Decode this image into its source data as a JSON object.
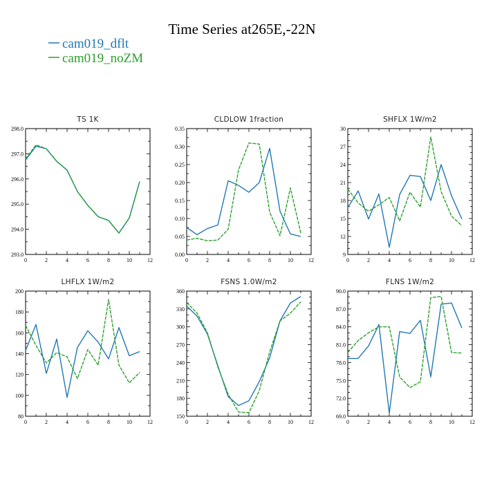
{
  "figure_title": "Time Series at265E,-22N",
  "legend": [
    {
      "label": "cam019_dflt",
      "color": "#1f77b4",
      "dashed": false
    },
    {
      "label": "cam019_noZM",
      "color": "#2ca02c",
      "dashed": true
    }
  ],
  "chart_data": [
    {
      "type": "line",
      "title": "TS   1K",
      "x": [
        0,
        1,
        2,
        3,
        4,
        5,
        6,
        7,
        8,
        9,
        10,
        11
      ],
      "xlim": [
        0,
        12
      ],
      "xticks": [
        "0",
        "2",
        "4",
        "6",
        "8",
        "10",
        "12"
      ],
      "ylim": [
        293,
        298
      ],
      "yticks": [
        "293.0",
        "294.0",
        "295.0",
        "296.0",
        "297.0",
        "298.0"
      ],
      "series": [
        {
          "name": "cam019_dflt",
          "color": "#1f77b4",
          "values": [
            296.75,
            297.3,
            297.2,
            296.7,
            296.35,
            295.5,
            294.95,
            294.5,
            294.35,
            293.85,
            294.45,
            295.9
          ]
        },
        {
          "name": "cam019_noZM",
          "color": "#2ca02c",
          "dashed": true,
          "values": [
            296.8,
            297.35,
            297.2,
            296.7,
            296.35,
            295.5,
            294.95,
            294.5,
            294.35,
            293.85,
            294.45,
            295.9
          ]
        }
      ]
    },
    {
      "type": "line",
      "title": "CLDLOW   1fraction",
      "x": [
        0,
        1,
        2,
        3,
        4,
        5,
        6,
        7,
        8,
        9,
        10,
        11
      ],
      "xlim": [
        0,
        12
      ],
      "xticks": [
        "0",
        "2",
        "4",
        "6",
        "8",
        "10",
        "12"
      ],
      "ylim": [
        0,
        0.35
      ],
      "yticks": [
        "0.00",
        "0.05",
        "0.10",
        "0.15",
        "0.20",
        "0.25",
        "0.30",
        "0.35"
      ],
      "series": [
        {
          "name": "cam019_dflt",
          "color": "#1f77b4",
          "values": [
            0.075,
            0.055,
            0.072,
            0.082,
            0.205,
            0.192,
            0.173,
            0.2,
            0.295,
            0.12,
            0.057,
            0.05
          ]
        },
        {
          "name": "cam019_noZM",
          "color": "#2ca02c",
          "dashed": true,
          "values": [
            0.04,
            0.045,
            0.038,
            0.04,
            0.07,
            0.235,
            0.31,
            0.307,
            0.118,
            0.052,
            0.185,
            0.06
          ]
        }
      ]
    },
    {
      "type": "line",
      "title": "SHFLX   1W/m2",
      "x": [
        0,
        1,
        2,
        3,
        4,
        5,
        6,
        7,
        8,
        9,
        10,
        11
      ],
      "xlim": [
        0,
        12
      ],
      "xticks": [
        "0",
        "2",
        "4",
        "6",
        "8",
        "10",
        "12"
      ],
      "ylim": [
        9,
        30
      ],
      "yticks": [
        "9",
        "12",
        "15",
        "18",
        "21",
        "24",
        "27",
        "30"
      ],
      "series": [
        {
          "name": "cam019_dflt",
          "color": "#1f77b4",
          "values": [
            16.8,
            19.6,
            14.9,
            19.1,
            10.2,
            19.0,
            22.2,
            22.0,
            18.0,
            24.0,
            18.8,
            14.9
          ]
        },
        {
          "name": "cam019_noZM",
          "color": "#2ca02c",
          "dashed": true,
          "values": [
            19.9,
            17.6,
            16.2,
            17.3,
            18.5,
            14.6,
            19.4,
            16.9,
            28.6,
            19.5,
            15.4,
            13.8
          ]
        }
      ]
    },
    {
      "type": "line",
      "title": "LHFLX   1W/m2",
      "x": [
        0,
        1,
        2,
        3,
        4,
        5,
        6,
        7,
        8,
        9,
        10,
        11
      ],
      "xlim": [
        0,
        12
      ],
      "xticks": [
        "0",
        "2",
        "4",
        "6",
        "8",
        "10",
        "12"
      ],
      "ylim": [
        80,
        200
      ],
      "yticks": [
        "80",
        "100",
        "120",
        "140",
        "160",
        "180",
        "200"
      ],
      "series": [
        {
          "name": "cam019_dflt",
          "color": "#1f77b4",
          "values": [
            143,
            168,
            121,
            154,
            98,
            146,
            162,
            151,
            135,
            165,
            138,
            142
          ]
        },
        {
          "name": "cam019_noZM",
          "color": "#2ca02c",
          "dashed": true,
          "values": [
            167,
            148,
            131,
            141,
            137,
            116,
            144,
            129,
            192,
            129,
            112,
            122
          ]
        }
      ]
    },
    {
      "type": "line",
      "title": "FSNS   1.0W/m2",
      "x": [
        0,
        1,
        2,
        3,
        4,
        5,
        6,
        7,
        8,
        9,
        10,
        11
      ],
      "xlim": [
        0,
        12
      ],
      "xticks": [
        "0",
        "2",
        "4",
        "6",
        "8",
        "10",
        "12"
      ],
      "ylim": [
        150,
        360
      ],
      "yticks": [
        "150",
        "180",
        "210",
        "240",
        "270",
        "300",
        "330",
        "360"
      ],
      "series": [
        {
          "name": "cam019_dflt",
          "color": "#1f77b4",
          "values": [
            335,
            318,
            288,
            235,
            183,
            168,
            176,
            208,
            248,
            310,
            340,
            351
          ]
        },
        {
          "name": "cam019_noZM",
          "color": "#2ca02c",
          "dashed": true,
          "values": [
            341,
            323,
            290,
            233,
            187,
            157,
            156,
            193,
            258,
            310,
            323,
            342
          ]
        }
      ]
    },
    {
      "type": "line",
      "title": "FLNS   1W/m2",
      "x": [
        0,
        1,
        2,
        3,
        4,
        5,
        6,
        7,
        8,
        9,
        10,
        11
      ],
      "xlim": [
        0,
        12
      ],
      "xticks": [
        "0",
        "2",
        "4",
        "6",
        "8",
        "10",
        "12"
      ],
      "ylim": [
        69,
        90
      ],
      "yticks": [
        "69.0",
        "72.0",
        "75.0",
        "78.0",
        "81.0",
        "84.0",
        "87.0",
        "90.0"
      ],
      "series": [
        {
          "name": "cam019_dflt",
          "color": "#1f77b4",
          "values": [
            78.7,
            78.7,
            80.8,
            84.4,
            69.5,
            83.2,
            82.9,
            85.1,
            75.6,
            87.8,
            88.0,
            83.8
          ]
        },
        {
          "name": "cam019_noZM",
          "color": "#2ca02c",
          "dashed": true,
          "values": [
            79.7,
            81.7,
            83.0,
            84.0,
            84.0,
            75.6,
            73.8,
            74.8,
            88.9,
            89.1,
            79.7,
            79.6
          ]
        }
      ]
    }
  ]
}
